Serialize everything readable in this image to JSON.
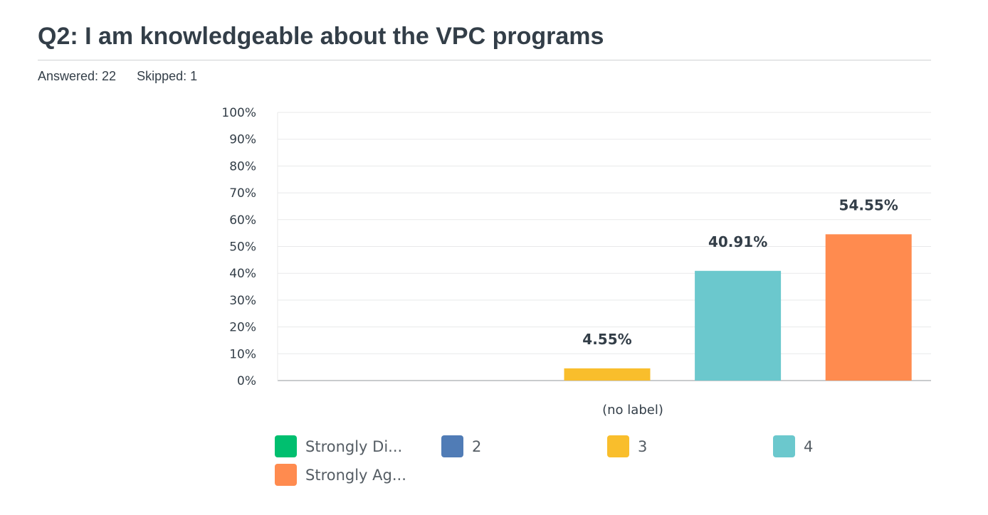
{
  "question": {
    "title": "Q2: I am knowledgeable about the VPC programs",
    "answered": "Answered: 22",
    "skipped": "Skipped: 1"
  },
  "chart_data": {
    "type": "bar",
    "categories": [
      "(no label)"
    ],
    "series": [
      {
        "name": "Strongly Di...",
        "values": [
          0
        ],
        "color": "#00bf6f",
        "label": ""
      },
      {
        "name": "2",
        "values": [
          0
        ],
        "color": "#507cb6",
        "label": ""
      },
      {
        "name": "3",
        "values": [
          4.55
        ],
        "color": "#f9be2c",
        "label": "4.55%"
      },
      {
        "name": "4",
        "values": [
          40.91
        ],
        "color": "#6bc8cd",
        "label": "40.91%"
      },
      {
        "name": "Strongly Ag...",
        "values": [
          54.55
        ],
        "color": "#ff8b4f",
        "label": "54.55%"
      }
    ],
    "yticks": [
      "0%",
      "10%",
      "20%",
      "30%",
      "40%",
      "50%",
      "60%",
      "70%",
      "80%",
      "90%",
      "100%"
    ],
    "ylim": [
      0,
      100
    ],
    "grid": true,
    "legend_position": "bottom"
  }
}
